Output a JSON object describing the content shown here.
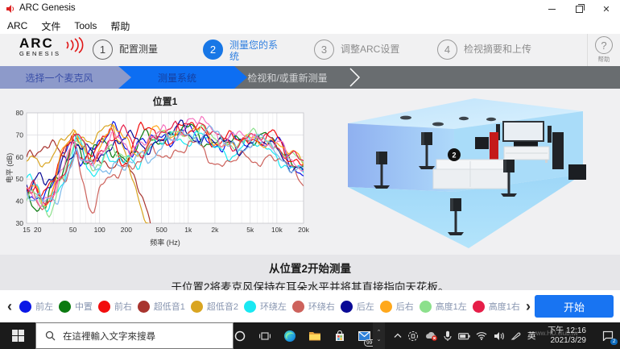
{
  "titlebar": {
    "title": "ARC Genesis"
  },
  "menubar": {
    "items": [
      "ARC",
      "文件",
      "Tools",
      "帮助"
    ]
  },
  "header": {
    "logo_line1": "ARC",
    "logo_line2": "GENESIS",
    "steps": [
      {
        "num": "1",
        "label": "配置测量",
        "state": "done"
      },
      {
        "num": "2",
        "label": "测量您的系统",
        "state": "active"
      },
      {
        "num": "3",
        "label": "调整ARC设置",
        "state": "future"
      },
      {
        "num": "4",
        "label": "检视摘要和上传",
        "state": "future"
      }
    ],
    "help_icon": "?",
    "help_label": "帮助"
  },
  "subnav": {
    "tabs": [
      {
        "label": "选择一个麦克风"
      },
      {
        "label": "测量系统"
      },
      {
        "label": "检视和/或重新测量"
      }
    ]
  },
  "chart_data": {
    "type": "line",
    "title": "位置1",
    "xlabel": "频率 (Hz)",
    "ylabel": "电平 (dB)",
    "xlim": [
      15,
      20000
    ],
    "ylim": [
      30,
      80
    ],
    "yticks": [
      30,
      40,
      50,
      60,
      70,
      80
    ],
    "xticks": [
      [
        15,
        "15"
      ],
      [
        20,
        "20"
      ],
      [
        50,
        "50"
      ],
      [
        100,
        "100"
      ],
      [
        200,
        "200"
      ],
      [
        500,
        "500"
      ],
      [
        1000,
        "1k"
      ],
      [
        2000,
        "2k"
      ],
      [
        5000,
        "5k"
      ],
      [
        10000,
        "10k"
      ],
      [
        20000,
        "20k"
      ]
    ],
    "minor_ticks": [
      30,
      40,
      60,
      70,
      80,
      90,
      300,
      400,
      600,
      700,
      800,
      900,
      3000,
      4000,
      6000,
      7000,
      8000,
      9000
    ],
    "grid": true,
    "series": [
      {
        "name": "前左",
        "color": "#0a17e6",
        "seed": 11,
        "noise": 1.0,
        "keypoints": [
          [
            15,
            48
          ],
          [
            25,
            42
          ],
          [
            40,
            58
          ],
          [
            50,
            68
          ],
          [
            70,
            61
          ],
          [
            100,
            64
          ],
          [
            160,
            74
          ],
          [
            250,
            62
          ],
          [
            400,
            68
          ],
          [
            700,
            71
          ],
          [
            1000,
            70
          ],
          [
            1600,
            68
          ],
          [
            2500,
            66
          ],
          [
            4000,
            66
          ],
          [
            6000,
            68
          ],
          [
            10000,
            66
          ],
          [
            14000,
            58
          ],
          [
            20000,
            53
          ]
        ]
      },
      {
        "name": "中置",
        "color": "#0b7a10",
        "seed": 22,
        "noise": 1.0,
        "keypoints": [
          [
            15,
            44
          ],
          [
            25,
            37
          ],
          [
            40,
            55
          ],
          [
            50,
            70
          ],
          [
            75,
            58
          ],
          [
            120,
            66
          ],
          [
            200,
            60
          ],
          [
            350,
            68
          ],
          [
            600,
            70
          ],
          [
            1000,
            72
          ],
          [
            2000,
            67
          ],
          [
            3500,
            66
          ],
          [
            5000,
            70
          ],
          [
            8000,
            69
          ],
          [
            12000,
            60
          ],
          [
            20000,
            57
          ]
        ]
      },
      {
        "name": "前右",
        "color": "#f20d0d",
        "seed": 33,
        "noise": 1.0,
        "keypoints": [
          [
            15,
            50
          ],
          [
            22,
            44
          ],
          [
            35,
            52
          ],
          [
            48,
            72
          ],
          [
            70,
            58
          ],
          [
            90,
            63
          ],
          [
            140,
            70
          ],
          [
            200,
            58
          ],
          [
            300,
            74
          ],
          [
            450,
            68
          ],
          [
            800,
            72
          ],
          [
            1200,
            74
          ],
          [
            2000,
            68
          ],
          [
            3000,
            67
          ],
          [
            5000,
            68
          ],
          [
            9000,
            70
          ],
          [
            13000,
            60
          ],
          [
            20000,
            58
          ]
        ]
      },
      {
        "name": "超低音1",
        "color": "#a8342e",
        "seed": 44,
        "noise": 0.8,
        "keypoints": [
          [
            15,
            61
          ],
          [
            25,
            62
          ],
          [
            40,
            66
          ],
          [
            50,
            72
          ],
          [
            65,
            60
          ],
          [
            80,
            56
          ],
          [
            110,
            58
          ],
          [
            150,
            60
          ],
          [
            200,
            55
          ],
          [
            260,
            48
          ],
          [
            320,
            38
          ],
          [
            400,
            28
          ],
          [
            500,
            14
          ],
          [
            20000,
            5
          ]
        ]
      },
      {
        "name": "超低音2",
        "color": "#d9a521",
        "seed": 55,
        "noise": 0.8,
        "keypoints": [
          [
            15,
            60
          ],
          [
            25,
            59
          ],
          [
            35,
            62
          ],
          [
            50,
            73
          ],
          [
            70,
            68
          ],
          [
            100,
            70
          ],
          [
            140,
            72
          ],
          [
            180,
            68
          ],
          [
            220,
            55
          ],
          [
            260,
            45
          ],
          [
            320,
            32
          ],
          [
            420,
            20
          ],
          [
            550,
            10
          ],
          [
            20000,
            4
          ]
        ]
      },
      {
        "name": "环绕左",
        "color": "#19e8f2",
        "seed": 66,
        "noise": 1.0,
        "keypoints": [
          [
            15,
            47
          ],
          [
            25,
            40
          ],
          [
            40,
            50
          ],
          [
            55,
            65
          ],
          [
            80,
            55
          ],
          [
            120,
            60
          ],
          [
            180,
            55
          ],
          [
            300,
            62
          ],
          [
            500,
            66
          ],
          [
            900,
            70
          ],
          [
            1500,
            68
          ],
          [
            2500,
            62
          ],
          [
            4000,
            64
          ],
          [
            7000,
            66
          ],
          [
            10000,
            62
          ],
          [
            14000,
            52
          ],
          [
            20000,
            54
          ]
        ]
      },
      {
        "name": "环绕右",
        "color": "#cd625c",
        "seed": 77,
        "noise": 1.0,
        "keypoints": [
          [
            15,
            43
          ],
          [
            25,
            42
          ],
          [
            40,
            48
          ],
          [
            55,
            62
          ],
          [
            70,
            45
          ],
          [
            85,
            37
          ],
          [
            110,
            45
          ],
          [
            150,
            52
          ],
          [
            220,
            58
          ],
          [
            350,
            60
          ],
          [
            600,
            62
          ],
          [
            1000,
            65
          ],
          [
            1600,
            62
          ],
          [
            2200,
            57
          ],
          [
            3000,
            58
          ],
          [
            5000,
            59
          ],
          [
            8000,
            60
          ],
          [
            12000,
            57
          ],
          [
            20000,
            50
          ]
        ]
      },
      {
        "name": "后左",
        "color": "#0a0a96",
        "seed": 88,
        "noise": 1.0,
        "keypoints": [
          [
            15,
            51
          ],
          [
            25,
            45
          ],
          [
            40,
            60
          ],
          [
            55,
            66
          ],
          [
            80,
            58
          ],
          [
            120,
            64
          ],
          [
            180,
            70
          ],
          [
            280,
            64
          ],
          [
            450,
            68
          ],
          [
            800,
            72
          ],
          [
            1300,
            70
          ],
          [
            2200,
            66
          ],
          [
            3500,
            65
          ],
          [
            6000,
            67
          ],
          [
            10000,
            64
          ],
          [
            15000,
            56
          ],
          [
            20000,
            52
          ]
        ]
      },
      {
        "name": "后右",
        "color": "#ffa81c",
        "seed": 99,
        "noise": 1.0,
        "keypoints": [
          [
            15,
            46
          ],
          [
            25,
            41
          ],
          [
            40,
            62
          ],
          [
            52,
            70
          ],
          [
            75,
            60
          ],
          [
            110,
            67
          ],
          [
            170,
            72
          ],
          [
            260,
            62
          ],
          [
            400,
            70
          ],
          [
            700,
            71
          ],
          [
            1100,
            73
          ],
          [
            1800,
            68
          ],
          [
            3000,
            66
          ],
          [
            5000,
            67
          ],
          [
            9000,
            68
          ],
          [
            13000,
            62
          ],
          [
            20000,
            58
          ]
        ]
      },
      {
        "name": "高度1左",
        "color": "#8ce08c",
        "seed": 110,
        "noise": 1.0,
        "keypoints": [
          [
            15,
            42
          ],
          [
            25,
            36
          ],
          [
            40,
            52
          ],
          [
            55,
            67
          ],
          [
            80,
            57
          ],
          [
            120,
            63
          ],
          [
            200,
            58
          ],
          [
            320,
            66
          ],
          [
            550,
            69
          ],
          [
            900,
            72
          ],
          [
            1500,
            70
          ],
          [
            2500,
            66
          ],
          [
            4000,
            67
          ],
          [
            7000,
            70
          ],
          [
            11000,
            63
          ],
          [
            20000,
            56
          ]
        ]
      },
      {
        "name": "高度1右",
        "color": "#e61e48",
        "seed": 121,
        "noise": 1.0,
        "keypoints": [
          [
            15,
            44
          ],
          [
            25,
            39
          ],
          [
            40,
            55
          ],
          [
            52,
            69
          ],
          [
            75,
            59
          ],
          [
            110,
            65
          ],
          [
            170,
            71
          ],
          [
            260,
            63
          ],
          [
            420,
            69
          ],
          [
            750,
            72
          ],
          [
            1200,
            75
          ],
          [
            2000,
            69
          ],
          [
            3200,
            67
          ],
          [
            5500,
            68
          ],
          [
            9000,
            69
          ],
          [
            13000,
            61
          ],
          [
            20000,
            57
          ]
        ]
      },
      {
        "name": "",
        "color": "#f575c0",
        "seed": 132,
        "noise": 1.0,
        "keypoints": [
          [
            15,
            45
          ],
          [
            25,
            41
          ],
          [
            40,
            53
          ],
          [
            55,
            66
          ],
          [
            80,
            58
          ],
          [
            120,
            64
          ],
          [
            190,
            68
          ],
          [
            300,
            65
          ],
          [
            500,
            70
          ],
          [
            850,
            73
          ],
          [
            1400,
            76
          ],
          [
            2300,
            70
          ],
          [
            3800,
            68
          ],
          [
            6500,
            69
          ],
          [
            10000,
            66
          ],
          [
            14000,
            58
          ],
          [
            20000,
            55
          ]
        ]
      },
      {
        "name": "",
        "color": "#7cb9ea",
        "seed": 143,
        "noise": 1.0,
        "keypoints": [
          [
            15,
            46
          ],
          [
            25,
            35
          ],
          [
            40,
            50
          ],
          [
            55,
            63
          ],
          [
            80,
            52
          ],
          [
            120,
            58
          ],
          [
            200,
            54
          ],
          [
            350,
            62
          ],
          [
            600,
            66
          ],
          [
            1000,
            70
          ],
          [
            1700,
            72
          ],
          [
            2800,
            65
          ],
          [
            4500,
            66
          ],
          [
            8000,
            67
          ],
          [
            12000,
            58
          ],
          [
            20000,
            53
          ]
        ]
      }
    ]
  },
  "room": {
    "position_marker": "2"
  },
  "instructions": {
    "line1": "从位置2开始测量",
    "line2": "于位置2将麦克风保持在耳朵水平并将其直接指向天花板。"
  },
  "channels": {
    "items": [
      {
        "label": "前左",
        "color": "#0a17e6"
      },
      {
        "label": "中置",
        "color": "#0b7a10"
      },
      {
        "label": "前右",
        "color": "#f20d0d"
      },
      {
        "label": "超低音1",
        "color": "#a8342e"
      },
      {
        "label": "超低音2",
        "color": "#d9a521"
      },
      {
        "label": "环绕左",
        "color": "#19e8f2"
      },
      {
        "label": "环绕右",
        "color": "#cd625c"
      },
      {
        "label": "后左",
        "color": "#0a0a96"
      },
      {
        "label": "后右",
        "color": "#ffa81c"
      },
      {
        "label": "高度1左",
        "color": "#8ce08c"
      },
      {
        "label": "高度1右",
        "color": "#e61e48"
      }
    ],
    "start_label": "开始"
  },
  "taskbar": {
    "search_placeholder": "在這裡輸入文字來搜尋",
    "mail_badge": "99+",
    "language": "英",
    "time": "下午 12:16",
    "date": "2021/3/29",
    "action_badge": "2",
    "watermark": "www.HD.club.tw"
  }
}
